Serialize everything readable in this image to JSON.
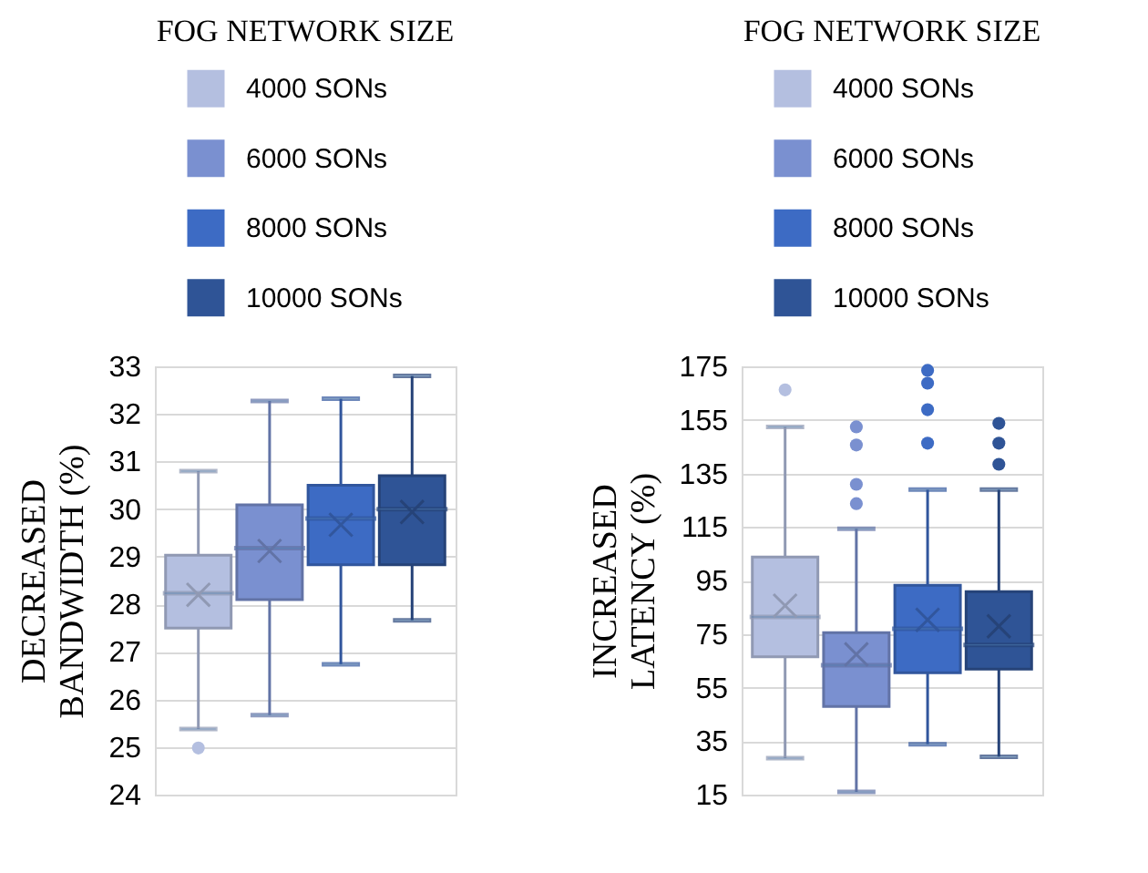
{
  "chart_data": [
    {
      "type": "box",
      "legend_title": "FOG NETWORK SIZE",
      "ylabel": "DECREASED BANDWIDTH (%)",
      "categories": [
        null
      ],
      "ylim": [
        24,
        33
      ],
      "yticks": [
        24,
        25,
        26,
        27,
        28,
        29,
        30,
        31,
        32,
        33
      ],
      "grid": "y",
      "legend": "top",
      "tick_labels": "y",
      "marker": "cross",
      "series": [
        {
          "name": "4000 SONs",
          "color": "#b4bfe0",
          "boxes": [
            {
              "low": 25.38,
              "q1": 27.5,
              "median": 28.23,
              "q3": 29.03,
              "high": 30.8,
              "mean": 28.2,
              "outliers": [
                24.98
              ]
            }
          ]
        },
        {
          "name": "6000 SONs",
          "color": "#7a90d0",
          "boxes": [
            {
              "low": 25.67,
              "q1": 28.1,
              "median": 29.18,
              "q3": 30.09,
              "high": 32.27,
              "mean": 29.12
            }
          ]
        },
        {
          "name": "8000 SONs",
          "color": "#3d6bc4",
          "boxes": [
            {
              "low": 26.74,
              "q1": 28.83,
              "median": 29.8,
              "q3": 30.5,
              "high": 32.32,
              "mean": 29.67
            }
          ]
        },
        {
          "name": "10000 SONs",
          "color": "#2f5496",
          "boxes": [
            {
              "low": 27.66,
              "q1": 28.83,
              "median": 30.0,
              "q3": 30.7,
              "high": 32.8,
              "mean": 29.94
            }
          ]
        }
      ]
    },
    {
      "type": "box",
      "legend_title": "FOG NETWORK SIZE",
      "ylabel": "INCREASED LATENCY (%)",
      "categories": [
        null
      ],
      "ylim": [
        15,
        175
      ],
      "yticks": [
        15,
        35,
        55,
        75,
        95,
        115,
        135,
        155,
        175
      ],
      "grid": "y",
      "legend": "top",
      "tick_labels": "y",
      "marker": "cross",
      "series": [
        {
          "name": "4000 SONs",
          "color": "#b4bfe0",
          "boxes": [
            {
              "low": 28.6,
              "q1": 66.5,
              "median": 81.4,
              "q3": 103.8,
              "high": 152.4,
              "mean": 85.6,
              "outliers": [
                166.2
              ]
            }
          ]
        },
        {
          "name": "6000 SONs",
          "color": "#7a90d0",
          "boxes": [
            {
              "low": 16,
              "q1": 47.9,
              "median": 63.3,
              "q3": 75.5,
              "high": 114.3,
              "mean": 67.4,
              "outliers": [
                123.7,
                130.9,
                145.6,
                152.4
              ]
            }
          ]
        },
        {
          "name": "8000 SONs",
          "color": "#3d6bc4",
          "boxes": [
            {
              "low": 33.8,
              "q1": 60.5,
              "median": 77,
              "q3": 93.2,
              "high": 129,
              "mean": 80.3,
              "outliers": [
                146.3,
                158.8,
                168.7,
                173.5
              ]
            }
          ]
        },
        {
          "name": "10000 SONs",
          "color": "#2f5496",
          "boxes": [
            {
              "low": 29.1,
              "q1": 61.9,
              "median": 70.9,
              "q3": 90.8,
              "high": 129,
              "mean": 77.9,
              "outliers": [
                138.4,
                146.3,
                153.7
              ]
            }
          ]
        }
      ]
    }
  ]
}
